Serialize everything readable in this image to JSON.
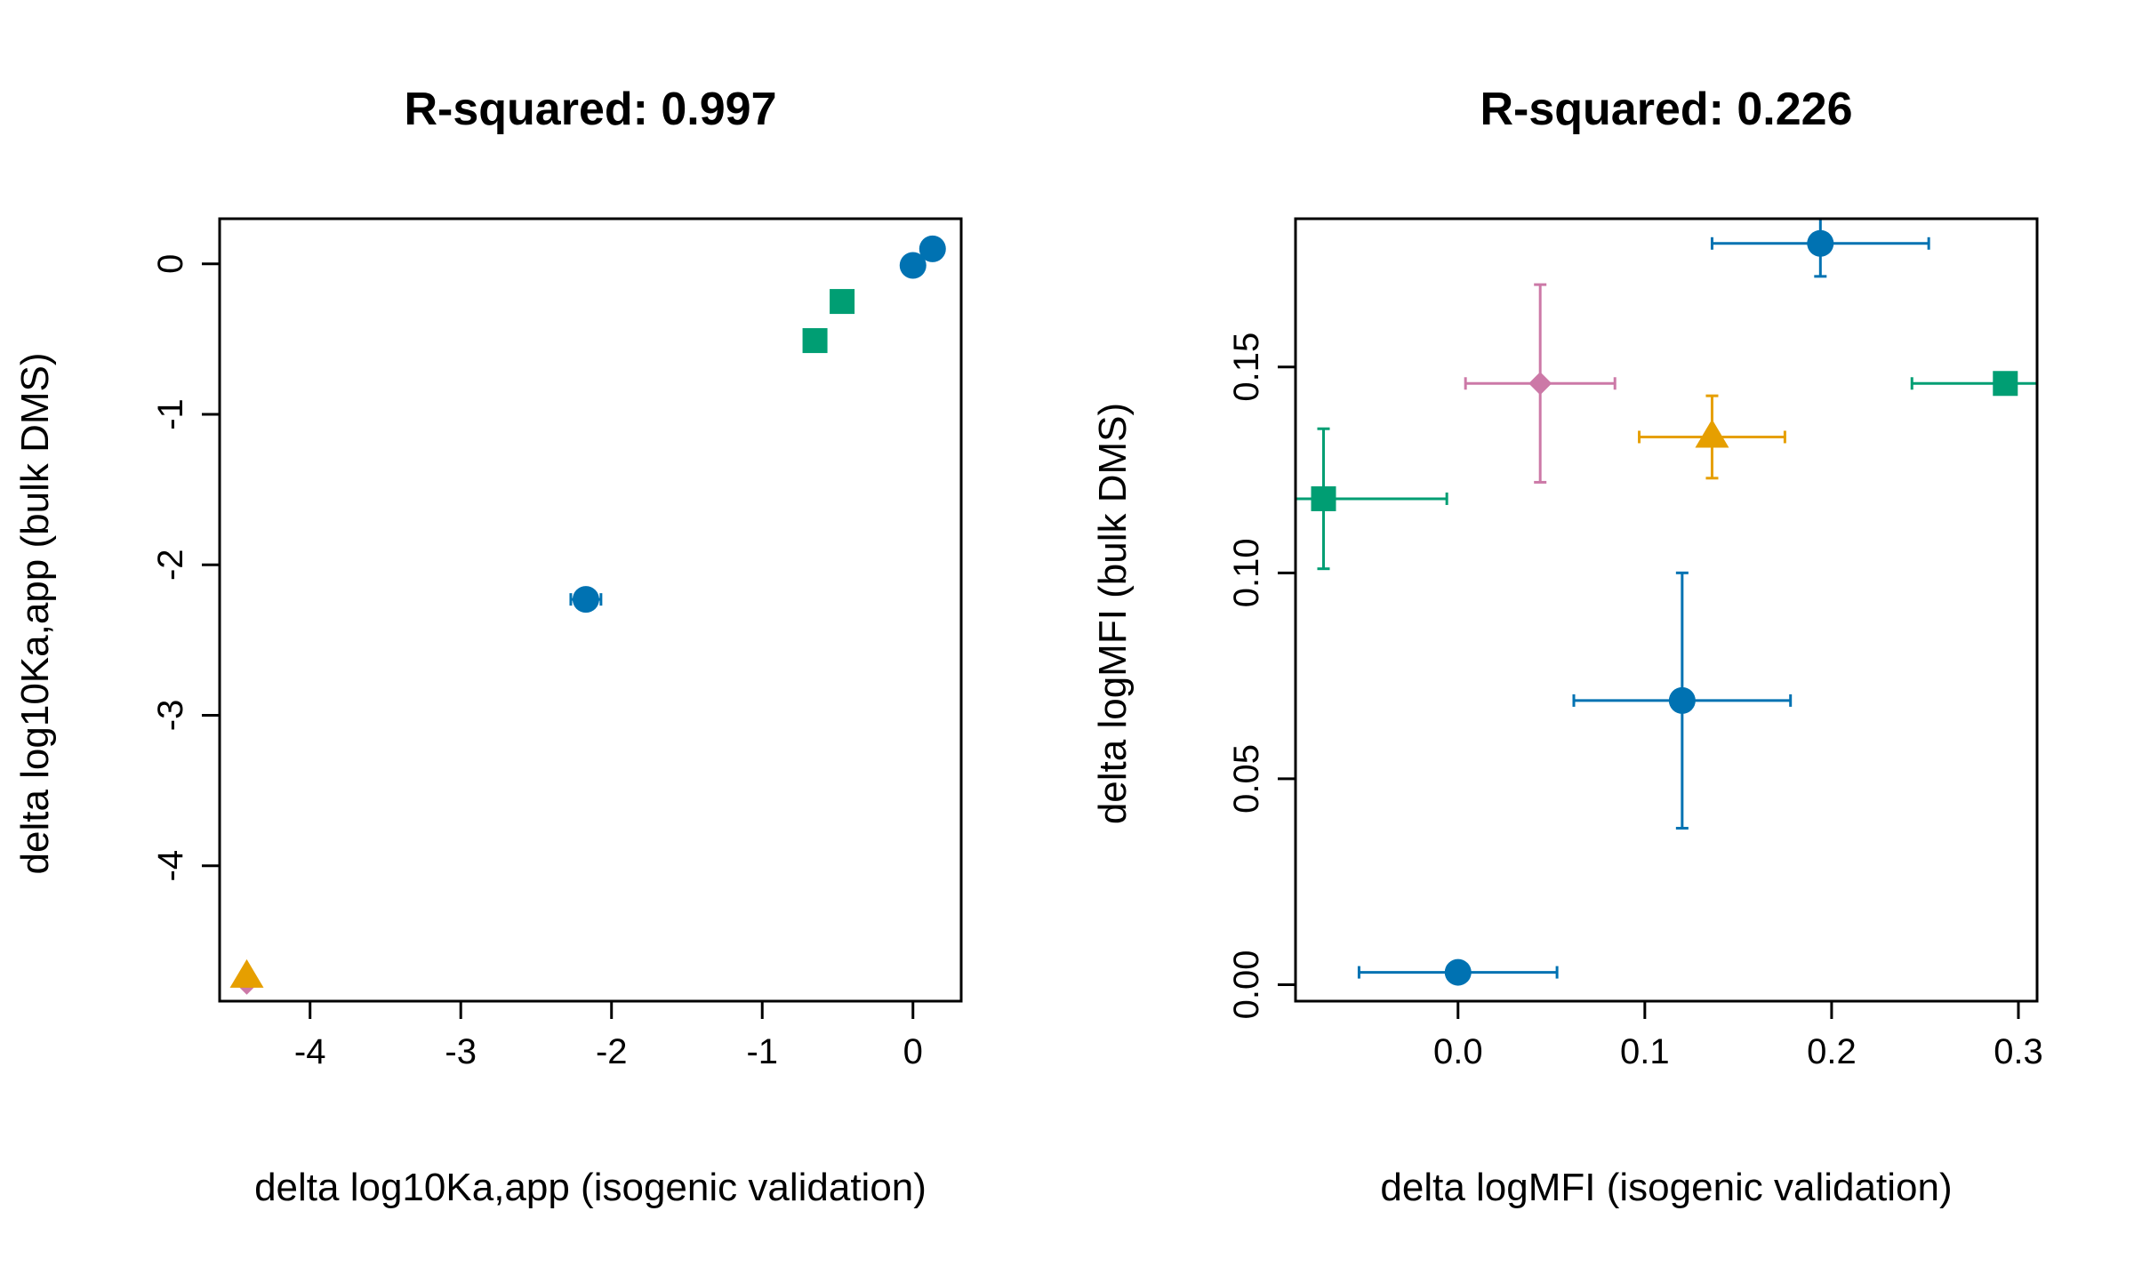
{
  "chart_data": [
    {
      "type": "scatter",
      "title": "R-squared: 0.997",
      "xlabel": "delta log10Ka,app (isogenic validation)",
      "ylabel": "delta log10Ka,app (bulk DMS)",
      "xlim": [
        -4.6,
        0.32
      ],
      "ylim": [
        -4.9,
        0.3
      ],
      "xticks": [
        -4,
        -3,
        -2,
        -1,
        0
      ],
      "xtick_labels": [
        "-4",
        "-3",
        "-2",
        "-1",
        "0"
      ],
      "yticks": [
        0,
        -1,
        -2,
        -3,
        -4
      ],
      "ytick_labels": [
        "0",
        "-1",
        "-2",
        "-3",
        "-4"
      ],
      "grid": false,
      "points": [
        {
          "x": -4.42,
          "y": -4.78,
          "shape": "diamond",
          "color": "#CC79A7"
        },
        {
          "x": -4.42,
          "y": -4.74,
          "shape": "triangle",
          "color": "#E69F00"
        },
        {
          "x": -2.17,
          "y": -2.23,
          "shape": "circle",
          "color": "#0072B2",
          "xerr": 0.1,
          "yerr": 0.0
        },
        {
          "x": -0.65,
          "y": -0.51,
          "shape": "square",
          "color": "#009E73"
        },
        {
          "x": -0.47,
          "y": -0.25,
          "shape": "square",
          "color": "#009E73"
        },
        {
          "x": 0.0,
          "y": -0.01,
          "shape": "circle",
          "color": "#0072B2"
        },
        {
          "x": 0.13,
          "y": 0.1,
          "shape": "circle",
          "color": "#0072B2"
        }
      ]
    },
    {
      "type": "scatter",
      "title": "R-squared: 0.226",
      "xlabel": "delta logMFI (isogenic validation)",
      "ylabel": "delta logMFI (bulk DMS)",
      "xlim": [
        -0.087,
        0.31
      ],
      "ylim": [
        -0.004,
        0.186
      ],
      "xticks": [
        0.0,
        0.1,
        0.2,
        0.3
      ],
      "xtick_labels": [
        "0.0",
        "0.1",
        "0.2",
        "0.3"
      ],
      "yticks": [
        0.0,
        0.05,
        0.1,
        0.15
      ],
      "ytick_labels": [
        "0.00",
        "0.05",
        "0.10",
        "0.15"
      ],
      "grid": false,
      "points": [
        {
          "x": 0.0,
          "y": 0.003,
          "shape": "circle",
          "color": "#0072B2",
          "xerr": 0.053,
          "yerr": 0.0
        },
        {
          "x": 0.12,
          "y": 0.069,
          "shape": "circle",
          "color": "#0072B2",
          "xerr": 0.058,
          "yerr": 0.031
        },
        {
          "x": -0.072,
          "y": 0.118,
          "shape": "square",
          "color": "#009E73",
          "xerr": 0.066,
          "yerr": 0.017
        },
        {
          "x": 0.044,
          "y": 0.146,
          "shape": "diamond",
          "color": "#CC79A7",
          "xerr": 0.04,
          "yerr": 0.024
        },
        {
          "x": 0.136,
          "y": 0.133,
          "shape": "triangle",
          "color": "#E69F00",
          "xerr": 0.039,
          "yerr": 0.01
        },
        {
          "x": 0.194,
          "y": 0.18,
          "shape": "circle",
          "color": "#0072B2",
          "xerr": 0.058,
          "yerr": 0.008
        },
        {
          "x": 0.293,
          "y": 0.146,
          "shape": "square",
          "color": "#009E73",
          "xerr": 0.05,
          "yerr": 0.0
        }
      ]
    }
  ]
}
